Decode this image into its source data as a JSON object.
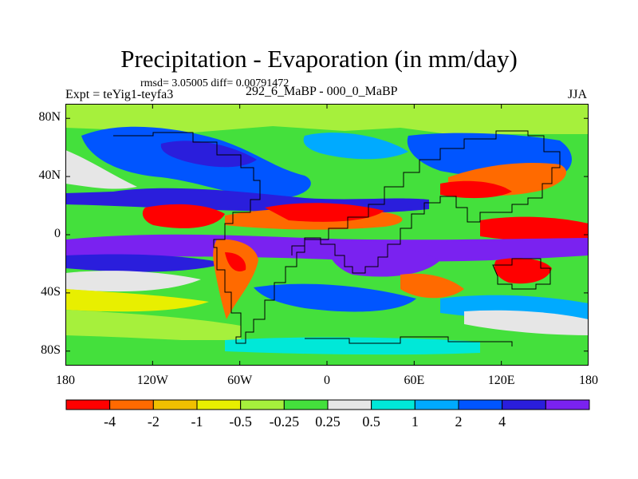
{
  "title": "Precipitation - Evaporation (in mm/day)",
  "stats": "rmsd= 3.05005 diff= 0.00791472",
  "experiment": "Expt = teYig1-teyfa3",
  "period": "292_6_MaBP - 000_0_MaBP",
  "season": "JJA",
  "map": {
    "lon_range": [
      -180,
      180
    ],
    "lat_range": [
      -90,
      90
    ],
    "y_ticks": [
      {
        "label": "80N",
        "lat": 80
      },
      {
        "label": "40N",
        "lat": 40
      },
      {
        "label": "0",
        "lat": 0
      },
      {
        "label": "40S",
        "lat": -40
      },
      {
        "label": "80S",
        "lat": -80
      }
    ],
    "x_ticks": [
      {
        "label": "180",
        "lon": -180
      },
      {
        "label": "120W",
        "lon": -120
      },
      {
        "label": "60W",
        "lon": -60
      },
      {
        "label": "0",
        "lon": 0
      },
      {
        "label": "60E",
        "lon": 60
      },
      {
        "label": "120E",
        "lon": 120
      },
      {
        "label": "180",
        "lon": 180
      }
    ]
  },
  "colorbar": {
    "colors": [
      "#ff0000",
      "#ff6a00",
      "#f0c000",
      "#e8ef00",
      "#a6f03c",
      "#44e03c",
      "#e6e6e6",
      "#00e8d8",
      "#00aaff",
      "#0055ff",
      "#2a1edc",
      "#7a22f0"
    ],
    "labels": [
      "-4",
      "-2",
      "-1",
      "-0.5",
      "-0.25",
      "0.25",
      "0.5",
      "1",
      "2",
      "4"
    ]
  }
}
